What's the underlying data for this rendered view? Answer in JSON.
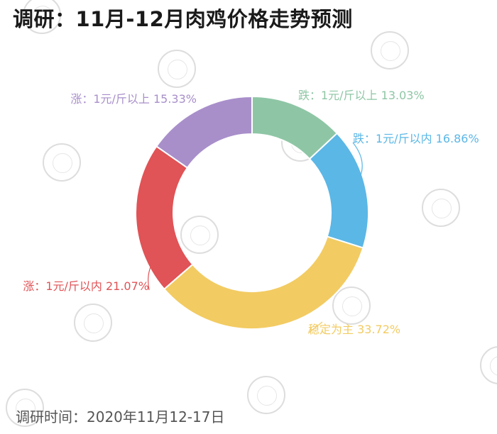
{
  "title": "调研：11月-12月肉鸡价格走势预测",
  "footer": "调研时间：2020年11月12-17日",
  "chart_data": {
    "type": "pie",
    "variant": "donut",
    "slices": [
      {
        "label": "跌：1元/斤以上",
        "value": 13.03,
        "percent_text": "13.03%",
        "color": "#8ec6a5"
      },
      {
        "label": "跌：1元/斤以内",
        "value": 16.86,
        "percent_text": "16.86%",
        "color": "#5bb7e6"
      },
      {
        "label": "稳定为主",
        "value": 33.72,
        "percent_text": "33.72%",
        "color": "#f2cb62"
      },
      {
        "label": "涨：1元/斤以内",
        "value": 21.07,
        "percent_text": "21.07%",
        "color": "#e05356"
      },
      {
        "label": "涨：1元/斤以上",
        "value": 15.33,
        "percent_text": "15.33%",
        "color": "#a88fca"
      }
    ]
  }
}
